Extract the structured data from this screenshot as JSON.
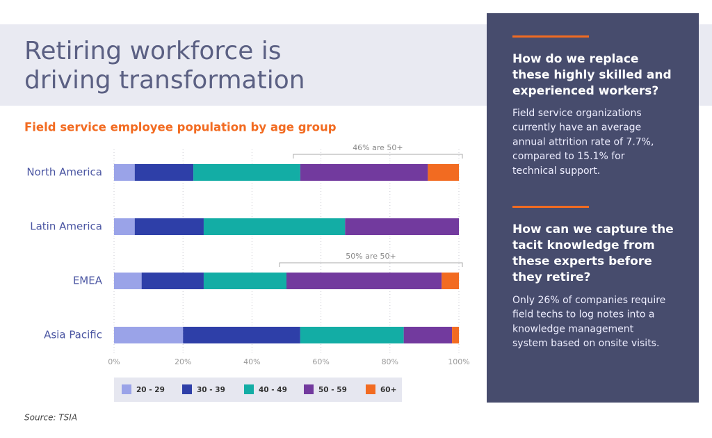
{
  "header": {
    "title": [
      "Retiring workforce is",
      "driving transformation"
    ]
  },
  "chart_data": {
    "type": "stacked-bar-horizontal",
    "title": "Field service employee population by age group",
    "categories": [
      "North America",
      "Latin America",
      "EMEA",
      "Asia Pacific"
    ],
    "series": [
      {
        "name": "20 - 29",
        "color": "#9aa3e8",
        "values": [
          6,
          6,
          8,
          20
        ]
      },
      {
        "name": "30 - 39",
        "color": "#2e3fa8",
        "values": [
          17,
          20,
          18,
          34
        ]
      },
      {
        "name": "40 - 49",
        "color": "#13ada5",
        "values": [
          31,
          41,
          24,
          30
        ]
      },
      {
        "name": "50 - 59",
        "color": "#723a9e",
        "values": [
          37,
          33,
          45,
          14
        ]
      },
      {
        "name": "60+",
        "color": "#f26b21",
        "values": [
          9,
          0,
          5,
          2
        ]
      }
    ],
    "annotations": [
      "46% are 50+",
      null,
      "50% are 50+",
      null
    ],
    "xlim": [
      0,
      100
    ],
    "xticks": [
      {
        "value": 0,
        "label": "0%"
      },
      {
        "value": 20,
        "label": "20%"
      },
      {
        "value": 40,
        "label": "40%"
      },
      {
        "value": 60,
        "label": "60%"
      },
      {
        "value": 80,
        "label": "80%"
      },
      {
        "value": 100,
        "label": "100%"
      }
    ],
    "grid": true
  },
  "source": "Source: TSIA",
  "sidebar": [
    {
      "heading": [
        "How do we replace",
        "these highly skilled and",
        "experienced workers?"
      ],
      "body": [
        "Field service organizations",
        "currently have an average",
        "annual attrition rate of 7.7%,",
        "compared to 15.1% for",
        "technical support."
      ]
    },
    {
      "heading": [
        "How can we capture the",
        "tacit knowledge from",
        "these experts before",
        "they retire?"
      ],
      "body": [
        "Only 26% of companies require",
        "field techs to log notes into a",
        "knowledge management",
        "system based on onsite visits."
      ]
    }
  ]
}
